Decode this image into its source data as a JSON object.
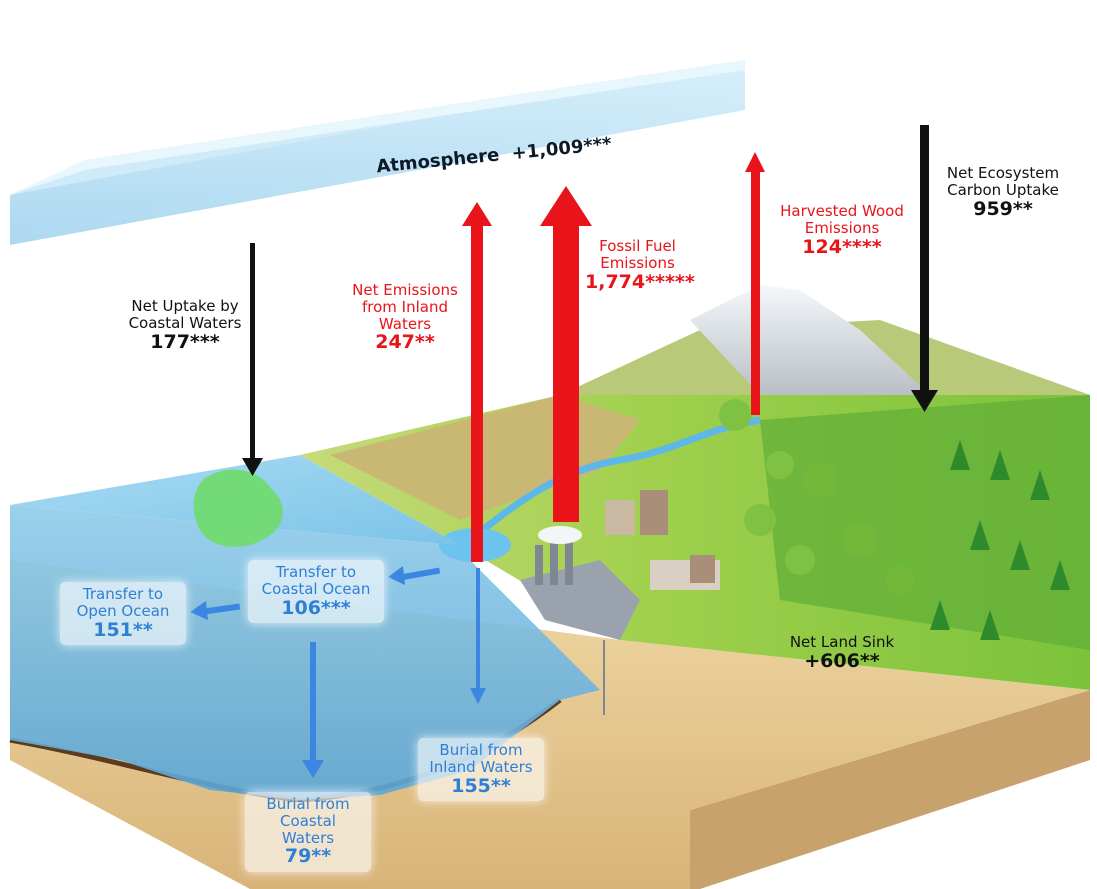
{
  "atmosphere": {
    "label": "Atmosphere",
    "value": "+1,009***"
  },
  "flows": {
    "net_uptake_coastal": {
      "text": "Net Uptake by Coastal Waters",
      "value": "177***"
    },
    "net_emissions_inland": {
      "text": "Net Emissions from Inland Waters",
      "value": "247**"
    },
    "fossil_fuel": {
      "text": "Fossil Fuel Emissions",
      "value": "1,774*****"
    },
    "harvested_wood": {
      "text": "Harvested Wood Emissions",
      "value": "124****"
    },
    "net_ecosystem_uptake": {
      "text": "Net Ecosystem Carbon Uptake",
      "value": "959**"
    },
    "transfer_coastal_ocean": {
      "text": "Transfer to Coastal Ocean",
      "value": "106***"
    },
    "transfer_open_ocean": {
      "text": "Transfer to Open Ocean",
      "value": "151**"
    },
    "burial_coastal": {
      "text": "Burial from Coastal Waters",
      "value": "79**"
    },
    "burial_inland": {
      "text": "Burial from Inland Waters",
      "value": "155**"
    },
    "net_land_sink": {
      "text": "Net Land Sink",
      "value": "+606**"
    }
  },
  "colors": {
    "emission_arrow": "#e8141a",
    "uptake_arrow": "#111111",
    "transfer_arrow": "#3a86e0",
    "atmosphere_slab": "#bfe3f5",
    "water": "#8fd0ee",
    "land": "#8cc63f",
    "soil": "#e7c98e"
  }
}
